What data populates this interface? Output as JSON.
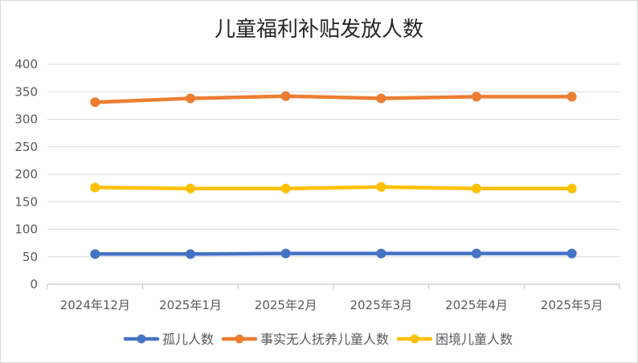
{
  "chart_data": {
    "type": "line",
    "title": "儿童福利补贴发放人数",
    "xlabel": "",
    "ylabel": "",
    "categories": [
      "2024年12月",
      "2025年1月",
      "2025年2月",
      "2025年3月",
      "2025年4月",
      "2025年5月"
    ],
    "ylim": [
      0,
      400
    ],
    "yticks": [
      0,
      50,
      100,
      150,
      200,
      250,
      300,
      350,
      400
    ],
    "grid": true,
    "legend_position": "bottom",
    "series": [
      {
        "name": "孤儿人数",
        "color": "#4472C4",
        "values": [
          55,
          55,
          56,
          56,
          56,
          56
        ]
      },
      {
        "name": "事实无人抚养儿童人数",
        "color": "#ED7D31",
        "values": [
          331,
          338,
          342,
          338,
          341,
          341
        ]
      },
      {
        "name": "困境儿童人数",
        "color": "#FFC000",
        "values": [
          176,
          174,
          174,
          177,
          174,
          174
        ]
      }
    ]
  }
}
